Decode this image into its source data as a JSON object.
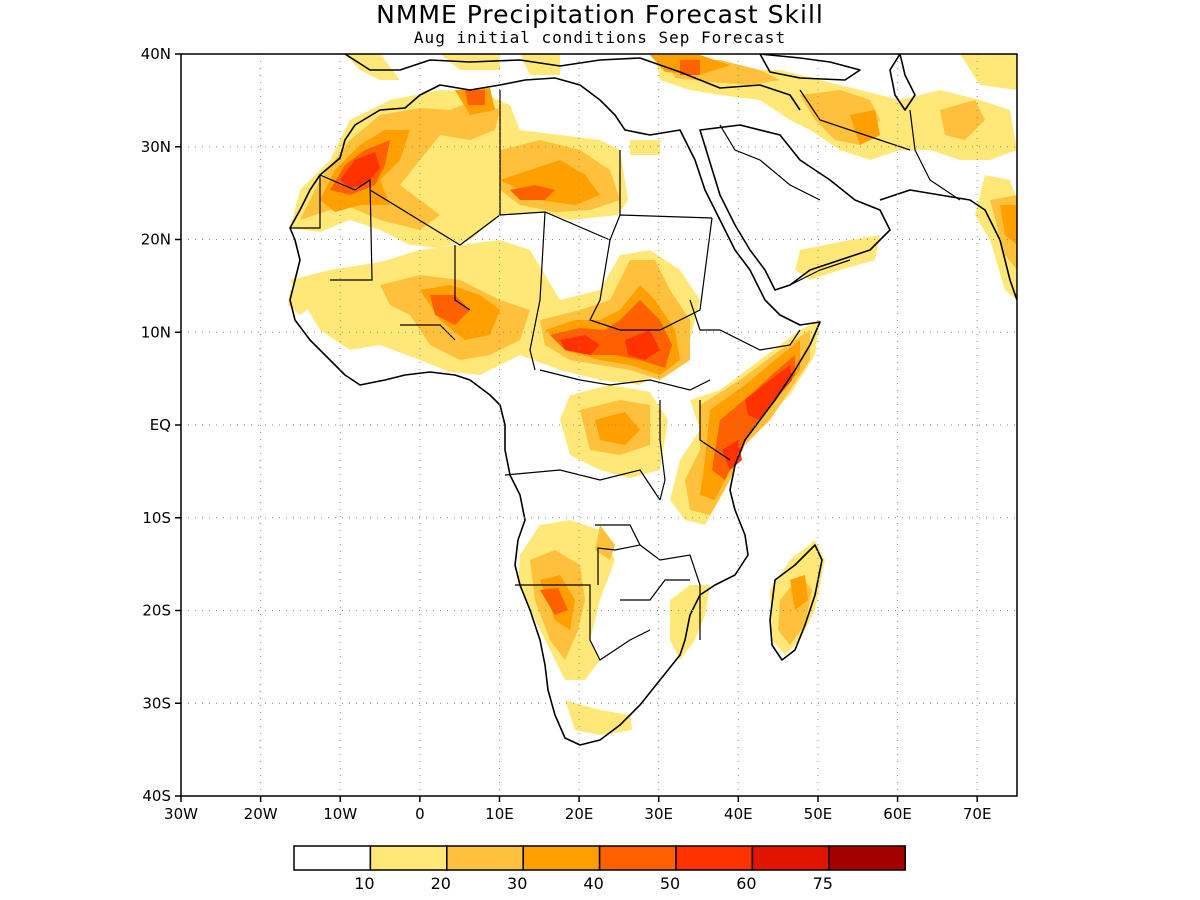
{
  "title": "NMME Precipitation Forecast Skill",
  "subtitle": "Aug initial conditions  Sep Forecast",
  "map": {
    "lon_range": [
      -30,
      75
    ],
    "lat_range": [
      -40,
      40
    ],
    "lat_ticks": [
      {
        "value": 40,
        "label": "40N"
      },
      {
        "value": 30,
        "label": "30N"
      },
      {
        "value": 20,
        "label": "20N"
      },
      {
        "value": 10,
        "label": "10N"
      },
      {
        "value": 0,
        "label": "EQ"
      },
      {
        "value": -10,
        "label": "10S"
      },
      {
        "value": -20,
        "label": "20S"
      },
      {
        "value": -30,
        "label": "30S"
      },
      {
        "value": -40,
        "label": "40S"
      }
    ],
    "lon_ticks": [
      {
        "value": -30,
        "label": "30W"
      },
      {
        "value": -20,
        "label": "20W"
      },
      {
        "value": -10,
        "label": "10W"
      },
      {
        "value": 0,
        "label": "0"
      },
      {
        "value": 10,
        "label": "10E"
      },
      {
        "value": 20,
        "label": "20E"
      },
      {
        "value": 30,
        "label": "30E"
      },
      {
        "value": 40,
        "label": "40E"
      },
      {
        "value": 50,
        "label": "50E"
      },
      {
        "value": 60,
        "label": "60E"
      },
      {
        "value": 70,
        "label": "70E"
      }
    ],
    "grid": true
  },
  "colorbar": {
    "colors": [
      "#ffffff",
      "#ffe878",
      "#ffc03c",
      "#ffa000",
      "#ff6000",
      "#ff3200",
      "#e11400",
      "#a50000"
    ],
    "labels": [
      "10",
      "20",
      "30",
      "40",
      "50",
      "60",
      "75"
    ]
  }
}
